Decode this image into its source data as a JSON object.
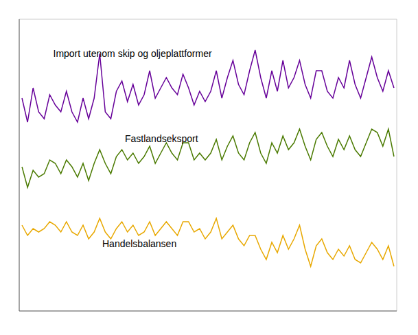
{
  "chart_data": {
    "type": "line",
    "x": [
      0,
      1,
      2,
      3,
      4,
      5,
      6,
      7,
      8,
      9,
      10,
      11,
      12,
      13,
      14,
      15,
      16,
      17,
      18,
      19,
      20,
      21,
      22,
      23,
      24,
      25,
      26,
      27,
      28,
      29,
      30,
      31,
      32,
      33,
      34,
      35,
      36,
      37,
      38,
      39,
      40,
      41,
      42,
      43,
      44,
      45,
      46,
      47,
      48,
      49,
      50,
      51,
      52,
      53,
      54,
      55,
      56,
      57,
      58,
      59,
      60,
      61,
      62,
      63,
      64,
      65,
      66,
      67
    ],
    "series": [
      {
        "color": "#660099",
        "values": [
          62,
          55,
          65,
          58,
          56,
          63,
          60,
          58,
          64,
          58,
          55,
          62,
          56,
          62,
          75,
          58,
          56,
          64,
          67,
          61,
          66,
          60,
          63,
          70,
          62,
          65,
          68,
          65,
          63,
          69,
          65,
          60,
          64,
          61,
          64,
          70,
          62,
          68,
          73,
          66,
          63,
          70,
          76,
          68,
          62,
          70,
          64,
          73,
          65,
          68,
          73,
          66,
          62,
          70,
          70,
          64,
          62,
          68,
          65,
          73,
          66,
          62,
          68,
          74,
          68,
          64,
          70,
          65
        ]
      },
      {
        "color": "#4a7a00",
        "values": [
          42,
          36,
          41,
          39,
          40,
          44,
          43,
          40,
          44,
          42,
          39,
          43,
          38,
          43,
          47,
          43,
          40,
          45,
          47,
          44,
          46,
          43,
          45,
          48,
          43,
          46,
          49,
          46,
          44,
          49,
          49,
          44,
          46,
          44,
          46,
          50,
          44,
          48,
          51,
          46,
          44,
          49,
          52,
          46,
          43,
          49,
          46,
          51,
          47,
          49,
          53,
          48,
          44,
          50,
          52,
          48,
          45,
          50,
          47,
          51,
          47,
          45,
          49,
          53,
          52,
          48,
          53,
          45
        ]
      },
      {
        "color": "#e8a800",
        "values": [
          25,
          22,
          24,
          23,
          24,
          26,
          25,
          23,
          26,
          23,
          22,
          25,
          21,
          23,
          27,
          23,
          21,
          24,
          26,
          23,
          25,
          22,
          23,
          26,
          22,
          24,
          26,
          24,
          22,
          26,
          26,
          23,
          24,
          21,
          23,
          27,
          21,
          23,
          25,
          21,
          19,
          22,
          22,
          18,
          15,
          20,
          17,
          22,
          18,
          21,
          25,
          18,
          13,
          19,
          21,
          17,
          15,
          18,
          16,
          19,
          15,
          14,
          17,
          20,
          18,
          15,
          19,
          13
        ]
      }
    ],
    "annotations": [
      {
        "text": "Import utenom skip og oljeplattformer"
      },
      {
        "text": "Fastlandseksport"
      },
      {
        "text": "Handelsbalansen"
      }
    ],
    "xlim": [
      -0.5,
      67.5
    ],
    "xticks": [
      0,
      5.583333333333333,
      11.166666666666666,
      16.75,
      22.333333333333332,
      27.916666666666664,
      33.5,
      39.08333333333333,
      44.666666666666664,
      50.25,
      55.83333333333333,
      61.416666666666664,
      67
    ],
    "ylim": [
      0,
      85
    ],
    "yticks": [
      0,
      10.625,
      21.25,
      31.875,
      42.5,
      53.125,
      63.75,
      74.375,
      85
    ],
    "grid": true,
    "tick_labels": false
  }
}
